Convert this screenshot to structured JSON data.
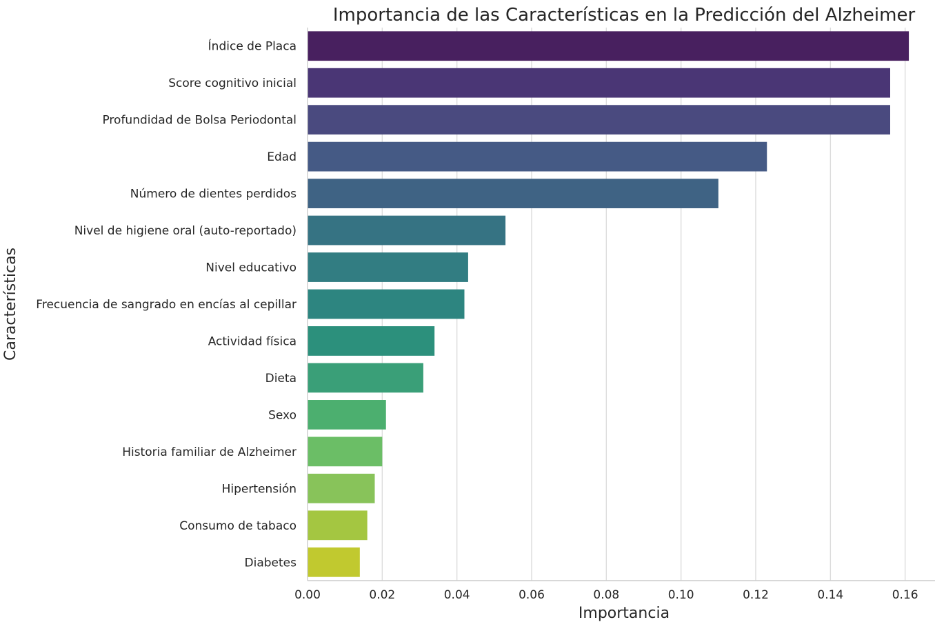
{
  "chart_data": {
    "type": "bar",
    "orientation": "horizontal",
    "title": "Importancia de las Características en la Predicción del Alzheimer",
    "xlabel": "Importancia",
    "ylabel": "Características",
    "xlim": [
      0,
      0.168
    ],
    "xticks": [
      0.0,
      0.02,
      0.04,
      0.06,
      0.08,
      0.1,
      0.12,
      0.14,
      0.16
    ],
    "xtick_labels": [
      "0.00",
      "0.02",
      "0.04",
      "0.06",
      "0.08",
      "0.10",
      "0.12",
      "0.14",
      "0.16"
    ],
    "grid": "vertical",
    "categories": [
      "Índice de Placa",
      "Score cognitivo inicial",
      "Profundidad de Bolsa Periodontal",
      "Edad",
      "Número de dientes perdidos",
      "Nivel de higiene oral (auto-reportado)",
      "Nivel educativo",
      "Frecuencia de sangrado en encías al cepillar",
      "Actividad física",
      "Dieta",
      "Sexo",
      "Historia familiar de Alzheimer",
      "Hipertensión",
      "Consumo de tabaco",
      "Diabetes"
    ],
    "values": [
      0.161,
      0.156,
      0.156,
      0.123,
      0.11,
      0.053,
      0.043,
      0.042,
      0.034,
      0.031,
      0.021,
      0.02,
      0.018,
      0.016,
      0.014
    ],
    "colors": [
      "#48205f",
      "#4a3675",
      "#4a4a7f",
      "#455a85",
      "#3f6384",
      "#367383",
      "#327d82",
      "#2d8580",
      "#2c907c",
      "#3a9f78",
      "#4caf6f",
      "#6bbe66",
      "#88c35a",
      "#a4c641",
      "#c1c92f"
    ]
  }
}
